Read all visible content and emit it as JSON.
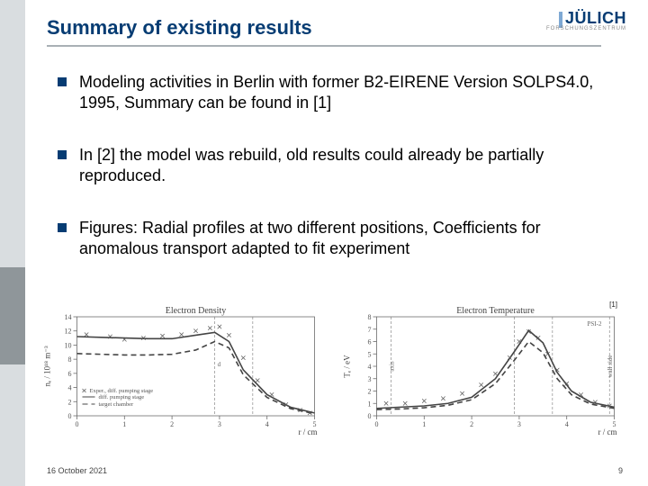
{
  "title": "Summary of existing results",
  "logo": {
    "main": "JÜLICH",
    "sub": "FORSCHUNGSZENTRUM"
  },
  "bullets": [
    "Modeling activities in Berlin with former B2-EIRENE Version SOLPS4.0, 1995, Summary can be found in [1]",
    "In [2] the model was rebuild, old results could already be partially reproduced.",
    "Figures: Radial profiles at two different positions, Coefficients for anomalous transport adapted to fit experiment"
  ],
  "ref_tag": "[1]",
  "footer": {
    "date": "16 October 2021",
    "page": "9"
  },
  "chart1": {
    "type": "line+scatter",
    "title": "Electron Density",
    "xlabel": "r / cm",
    "ylabel": "nₑ / 10¹⁸ m⁻³",
    "xlim": [
      0,
      5
    ],
    "ylim": [
      0,
      14
    ],
    "xticks": [
      0,
      1,
      2,
      3,
      4,
      5
    ],
    "yticks": [
      0,
      2,
      4,
      6,
      8,
      10,
      12,
      14
    ],
    "vlines": [
      {
        "x": 2.9,
        "label": "d"
      },
      {
        "x": 3.7,
        "label": ""
      }
    ],
    "series_solid": [
      [
        0,
        11.2
      ],
      [
        0.5,
        11.1
      ],
      [
        1,
        11.0
      ],
      [
        1.5,
        10.9
      ],
      [
        2,
        10.9
      ],
      [
        2.5,
        11.4
      ],
      [
        2.9,
        11.8
      ],
      [
        3.2,
        10.5
      ],
      [
        3.5,
        6.5
      ],
      [
        4,
        3.0
      ],
      [
        4.5,
        1.2
      ],
      [
        5,
        0.4
      ]
    ],
    "series_dash": [
      [
        0,
        8.8
      ],
      [
        0.5,
        8.7
      ],
      [
        1,
        8.6
      ],
      [
        1.5,
        8.6
      ],
      [
        2,
        8.7
      ],
      [
        2.5,
        9.3
      ],
      [
        2.9,
        10.5
      ],
      [
        3.2,
        9.6
      ],
      [
        3.5,
        5.8
      ],
      [
        4,
        2.6
      ],
      [
        4.5,
        1.0
      ],
      [
        5,
        0.3
      ]
    ],
    "markers": [
      [
        0.2,
        11.5
      ],
      [
        0.7,
        11.2
      ],
      [
        1.0,
        10.8
      ],
      [
        1.4,
        11.0
      ],
      [
        1.8,
        11.3
      ],
      [
        2.2,
        11.5
      ],
      [
        2.5,
        12.0
      ],
      [
        2.8,
        12.4
      ],
      [
        3.0,
        12.6
      ],
      [
        3.2,
        11.4
      ],
      [
        3.5,
        8.2
      ],
      [
        3.8,
        5.0
      ],
      [
        4.1,
        3.0
      ],
      [
        4.4,
        1.6
      ],
      [
        4.7,
        0.8
      ],
      [
        4.9,
        0.4
      ]
    ],
    "legend": [
      "Exper., diff. pumping stage",
      "diff. pumping stage",
      "target chamber"
    ],
    "colors": {
      "axis": "#6b6b6b",
      "line": "#444",
      "text": "#555",
      "bg": "#ffffff"
    }
  },
  "chart2": {
    "type": "line+scatter",
    "title": "Electron Temperature",
    "xlabel": "r / cm",
    "ylabel": "Tₑ / eV",
    "xlim": [
      0,
      5
    ],
    "ylim": [
      0,
      8
    ],
    "xticks": [
      0,
      1,
      2,
      3,
      4,
      5
    ],
    "yticks": [
      0,
      1,
      2,
      3,
      4,
      5,
      6,
      7,
      8
    ],
    "vlines": [
      {
        "x": 0.3,
        "label": "axis"
      },
      {
        "x": 2.9,
        "label": ""
      },
      {
        "x": 3.7,
        "label": ""
      },
      {
        "x": 4.9,
        "label": "wall side"
      }
    ],
    "series_solid": [
      [
        0,
        0.6
      ],
      [
        0.5,
        0.7
      ],
      [
        1,
        0.8
      ],
      [
        1.5,
        1.0
      ],
      [
        2,
        1.5
      ],
      [
        2.5,
        3.0
      ],
      [
        2.9,
        5.2
      ],
      [
        3.2,
        6.9
      ],
      [
        3.5,
        5.9
      ],
      [
        3.8,
        3.5
      ],
      [
        4.1,
        2.0
      ],
      [
        4.5,
        1.1
      ],
      [
        5,
        0.7
      ]
    ],
    "series_dash": [
      [
        0,
        0.5
      ],
      [
        0.5,
        0.55
      ],
      [
        1,
        0.65
      ],
      [
        1.5,
        0.85
      ],
      [
        2,
        1.3
      ],
      [
        2.5,
        2.6
      ],
      [
        2.9,
        4.5
      ],
      [
        3.2,
        6.0
      ],
      [
        3.5,
        5.1
      ],
      [
        3.8,
        3.0
      ],
      [
        4.1,
        1.7
      ],
      [
        4.5,
        0.95
      ],
      [
        5,
        0.6
      ]
    ],
    "markers": [
      [
        0.2,
        1.0
      ],
      [
        0.6,
        1.0
      ],
      [
        1.0,
        1.2
      ],
      [
        1.4,
        1.4
      ],
      [
        1.8,
        1.8
      ],
      [
        2.2,
        2.5
      ],
      [
        2.5,
        3.4
      ],
      [
        2.8,
        4.7
      ],
      [
        3.0,
        6.0
      ],
      [
        3.2,
        6.8
      ],
      [
        3.4,
        6.3
      ],
      [
        3.6,
        5.0
      ],
      [
        3.8,
        3.7
      ],
      [
        4.0,
        2.6
      ],
      [
        4.3,
        1.7
      ],
      [
        4.6,
        1.1
      ],
      [
        4.9,
        0.8
      ]
    ],
    "label_psi": "PSI-2",
    "colors": {
      "axis": "#6b6b6b",
      "line": "#444",
      "text": "#555",
      "bg": "#ffffff"
    }
  }
}
